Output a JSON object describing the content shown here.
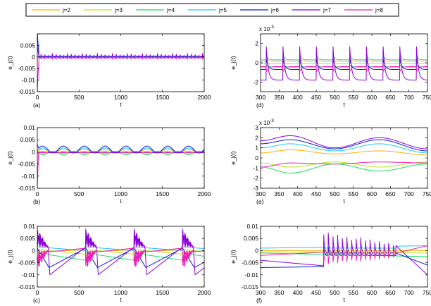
{
  "legend": {
    "entries": [
      {
        "label": "j=2",
        "color": "#ffb000"
      },
      {
        "label": "j=3",
        "color": "#b4e61e"
      },
      {
        "label": "j=4",
        "color": "#1edc5a"
      },
      {
        "label": "j=5",
        "color": "#1ec8f0"
      },
      {
        "label": "j=6",
        "color": "#0a1ed2"
      },
      {
        "label": "j=7",
        "color": "#8c00dc"
      },
      {
        "label": "j=8",
        "color": "#f01eb4"
      }
    ]
  },
  "chart_data": [
    {
      "panel": "(a)",
      "type": "line",
      "xlabel": "t",
      "ylabel": "e_j(t)",
      "xlim": [
        0,
        2000
      ],
      "ylim": [
        -0.015,
        0.01
      ],
      "xticks": [
        "0",
        "500",
        "1000",
        "1500",
        "2000"
      ],
      "yticks": [
        "-0.015",
        "-0.01",
        "-0.005",
        "0",
        "0.005",
        ""
      ],
      "yticks_values": [
        -0.015,
        -0.01,
        -0.005,
        0,
        0.005,
        0.01
      ],
      "y_multiplier": "",
      "series": [
        {
          "name": "j=2",
          "x": [
            0,
            2000
          ],
          "y": [
            0.0,
            0.0
          ]
        },
        {
          "name": "j=3",
          "x": [
            0,
            2000
          ],
          "y": [
            -0.0005,
            -0.0005
          ]
        },
        {
          "name": "j=4",
          "x": [
            0,
            2000
          ],
          "y": [
            -0.0008,
            -0.0008
          ]
        },
        {
          "name": "j=5",
          "x": [
            0,
            2000
          ],
          "y": [
            0.0003,
            0.0003
          ]
        },
        {
          "name": "j=6",
          "x": [
            0,
            2000
          ],
          "y": [
            0.0008,
            0.0008
          ]
        },
        {
          "name": "j=7",
          "x": [
            0,
            2000
          ],
          "y": [
            0.001,
            0.001
          ]
        },
        {
          "name": "j=8",
          "x": [
            0,
            2000
          ],
          "y": [
            -0.001,
            -0.001
          ]
        }
      ],
      "features": "early transient to ~0.01 at t=0; periodic spikes every ~45 time units between about -0.0015 and 0.002"
    },
    {
      "panel": "(b)",
      "type": "line",
      "xlabel": "t",
      "ylabel": "e_j(t)",
      "xlim": [
        0,
        2000
      ],
      "ylim": [
        -0.015,
        0.01
      ],
      "xticks": [
        "0",
        "500",
        "1000",
        "1500",
        "2000"
      ],
      "yticks": [
        "-0.015",
        "-0.01",
        "-0.005",
        "0",
        "0.005",
        "0.01"
      ],
      "yticks_values": [
        -0.015,
        -0.01,
        -0.005,
        0,
        0.005,
        0.01
      ],
      "y_multiplier": "",
      "series": [
        {
          "name": "j=2",
          "x": [
            0,
            2000
          ],
          "y": [
            0.0006,
            0.0006
          ]
        },
        {
          "name": "j=3",
          "x": [
            0,
            2000
          ],
          "y": [
            -0.0006,
            -0.0006
          ]
        },
        {
          "name": "j=4",
          "x": [
            0,
            2000
          ],
          "y": [
            -0.0009,
            -0.0009
          ]
        },
        {
          "name": "j=5",
          "x": [
            0,
            2000
          ],
          "y": [
            0.0012,
            0.0012
          ]
        },
        {
          "name": "j=6",
          "x": [
            0,
            2000
          ],
          "y": [
            0.0018,
            0.0018
          ]
        },
        {
          "name": "j=7",
          "x": [
            0,
            2000
          ],
          "y": [
            -0.0003,
            -0.0003
          ]
        },
        {
          "name": "j=8",
          "x": [
            0,
            2000
          ],
          "y": [
            -0.0002,
            -0.0002
          ]
        }
      ],
      "features": "smooth oscillation period ~250 with amplitude up to ~0.002"
    },
    {
      "panel": "(c)",
      "type": "line",
      "xlabel": "t",
      "ylabel": "e_j(t)",
      "xlim": [
        0,
        2000
      ],
      "ylim": [
        -0.015,
        0.01
      ],
      "xticks": [
        "0",
        "500",
        "1000",
        "1500",
        "2000"
      ],
      "yticks": [
        "-0.015",
        "-0.01",
        "-0.005",
        "0",
        "0.005",
        "0.01"
      ],
      "yticks_values": [
        -0.015,
        -0.01,
        -0.005,
        0,
        0.005,
        0.01
      ],
      "y_multiplier": "",
      "series": [
        {
          "name": "j=2",
          "x": [
            0,
            2000
          ],
          "y": [
            0.0,
            0.0
          ]
        },
        {
          "name": "j=3",
          "x": [
            0,
            2000
          ],
          "y": [
            -0.002,
            -0.002
          ]
        },
        {
          "name": "j=4",
          "x": [
            0,
            2000
          ],
          "y": [
            -0.004,
            -0.004
          ]
        },
        {
          "name": "j=5",
          "x": [
            0,
            2000
          ],
          "y": [
            0.001,
            0.001
          ]
        },
        {
          "name": "j=6",
          "x": [
            0,
            2000
          ],
          "y": [
            -0.005,
            -0.005
          ]
        },
        {
          "name": "j=7",
          "x": [
            0,
            2000
          ],
          "y": [
            -0.01,
            -0.01
          ]
        },
        {
          "name": "j=8",
          "x": [
            0,
            2000
          ],
          "y": [
            0.0,
            0.0
          ]
        }
      ],
      "features": "relaxation cycle period ~580; bursts of fast oscillation near t=0, 580, 1160, 1740 reaching ~0.009"
    },
    {
      "panel": "(d)",
      "type": "line",
      "xlabel": "t",
      "ylabel": "e_j(t)",
      "xlim": [
        300,
        750
      ],
      "ylim": [
        -3,
        3
      ],
      "xticks": [
        "300",
        "350",
        "400",
        "450",
        "500",
        "550",
        "600",
        "650",
        "700",
        "750"
      ],
      "yticks": [
        "-2",
        "0",
        "2"
      ],
      "yticks_values": [
        -2,
        0,
        2
      ],
      "y_multiplier": "x 10",
      "y_multiplier_exponent": "-3",
      "series": [
        {
          "name": "j=2",
          "x": [
            300,
            750
          ],
          "y": [
            0.2,
            0.2
          ]
        },
        {
          "name": "j=3",
          "x": [
            300,
            750
          ],
          "y": [
            -0.1,
            -0.1
          ]
        },
        {
          "name": "j=4",
          "x": [
            300,
            750
          ],
          "y": [
            -0.4,
            -0.4
          ]
        },
        {
          "name": "j=5",
          "x": [
            300,
            750
          ],
          "y": [
            0.5,
            0.5
          ]
        },
        {
          "name": "j=6",
          "x": [
            300,
            750
          ],
          "y": [
            -0.3,
            -0.3
          ]
        },
        {
          "name": "j=7",
          "x": [
            300,
            750
          ],
          "y": [
            0.0,
            0.0
          ]
        },
        {
          "name": "j=8",
          "x": [
            300,
            750
          ],
          "y": [
            -0.6,
            -0.6
          ]
        }
      ],
      "features": "sharp periodic spikes every ~45 units; j=7 peaks ~2 and dips ~-1.8"
    },
    {
      "panel": "(e)",
      "type": "line",
      "xlabel": "t",
      "ylabel": "e_j(t)",
      "xlim": [
        300,
        750
      ],
      "ylim": [
        -3,
        3
      ],
      "xticks": [
        "300",
        "350",
        "400",
        "450",
        "500",
        "550",
        "600",
        "650",
        "700",
        "750"
      ],
      "yticks": [
        "-3",
        "-2",
        "-1",
        "0",
        "1",
        "2",
        "3"
      ],
      "yticks_values": [
        -3,
        -2,
        -1,
        0,
        1,
        2,
        3
      ],
      "y_multiplier": "x 10",
      "y_multiplier_exponent": "-3",
      "series": [
        {
          "name": "j=2",
          "x": [
            300,
            380,
            500,
            620,
            750
          ],
          "y": [
            0.5,
            0.8,
            0.4,
            0.7,
            0.3
          ]
        },
        {
          "name": "j=3",
          "x": [
            300,
            380,
            500,
            620,
            750
          ],
          "y": [
            -0.5,
            -0.9,
            -0.4,
            -0.9,
            -0.4
          ]
        },
        {
          "name": "j=4",
          "x": [
            300,
            380,
            500,
            620,
            750
          ],
          "y": [
            -0.9,
            -1.5,
            -0.6,
            -1.3,
            -0.6
          ]
        },
        {
          "name": "j=5",
          "x": [
            300,
            380,
            500,
            620,
            750
          ],
          "y": [
            1.0,
            1.4,
            0.7,
            1.4,
            0.5
          ]
        },
        {
          "name": "j=6",
          "x": [
            300,
            380,
            500,
            620,
            750
          ],
          "y": [
            1.4,
            1.8,
            0.9,
            1.8,
            0.7
          ]
        },
        {
          "name": "j=7",
          "x": [
            300,
            380,
            500,
            620,
            750
          ],
          "y": [
            1.7,
            2.2,
            1.0,
            2.0,
            0.9
          ]
        },
        {
          "name": "j=8",
          "x": [
            300,
            380,
            500,
            620,
            750
          ],
          "y": [
            -0.9,
            -0.5,
            -0.6,
            -0.4,
            -0.5
          ]
        }
      ]
    },
    {
      "panel": "(f)",
      "type": "line",
      "xlabel": "t",
      "ylabel": "e_j(t)",
      "xlim": [
        300,
        750
      ],
      "ylim": [
        -0.015,
        0.01
      ],
      "xticks": [
        "300",
        "350",
        "400",
        "450",
        "500",
        "550",
        "600",
        "650",
        "700",
        "750"
      ],
      "yticks": [
        "-0.015",
        "-0.01",
        "-0.005",
        "0",
        "0.005",
        "0.01"
      ],
      "yticks_values": [
        -0.015,
        -0.01,
        -0.005,
        0,
        0.005,
        0.01
      ],
      "y_multiplier": "",
      "series": [
        {
          "name": "j=2",
          "x": [
            300,
            750
          ],
          "y": [
            0.0,
            0.0
          ]
        },
        {
          "name": "j=3",
          "x": [
            300,
            750
          ],
          "y": [
            -0.0005,
            -0.001
          ]
        },
        {
          "name": "j=4",
          "x": [
            300,
            750
          ],
          "y": [
            -0.001,
            -0.0025
          ]
        },
        {
          "name": "j=5",
          "x": [
            300,
            750
          ],
          "y": [
            0.001,
            0.002
          ]
        },
        {
          "name": "j=6",
          "x": [
            300,
            750
          ],
          "y": [
            -0.007,
            -0.006
          ]
        },
        {
          "name": "j=7",
          "x": [
            300,
            750
          ],
          "y": [
            -0.004,
            -0.01
          ]
        },
        {
          "name": "j=8",
          "x": [
            300,
            750
          ],
          "y": [
            -0.002,
            0.0015
          ]
        }
      ],
      "features": "burst of spikes between t=470 and t=660 reaching ~0.008; decaying afterwards"
    }
  ]
}
